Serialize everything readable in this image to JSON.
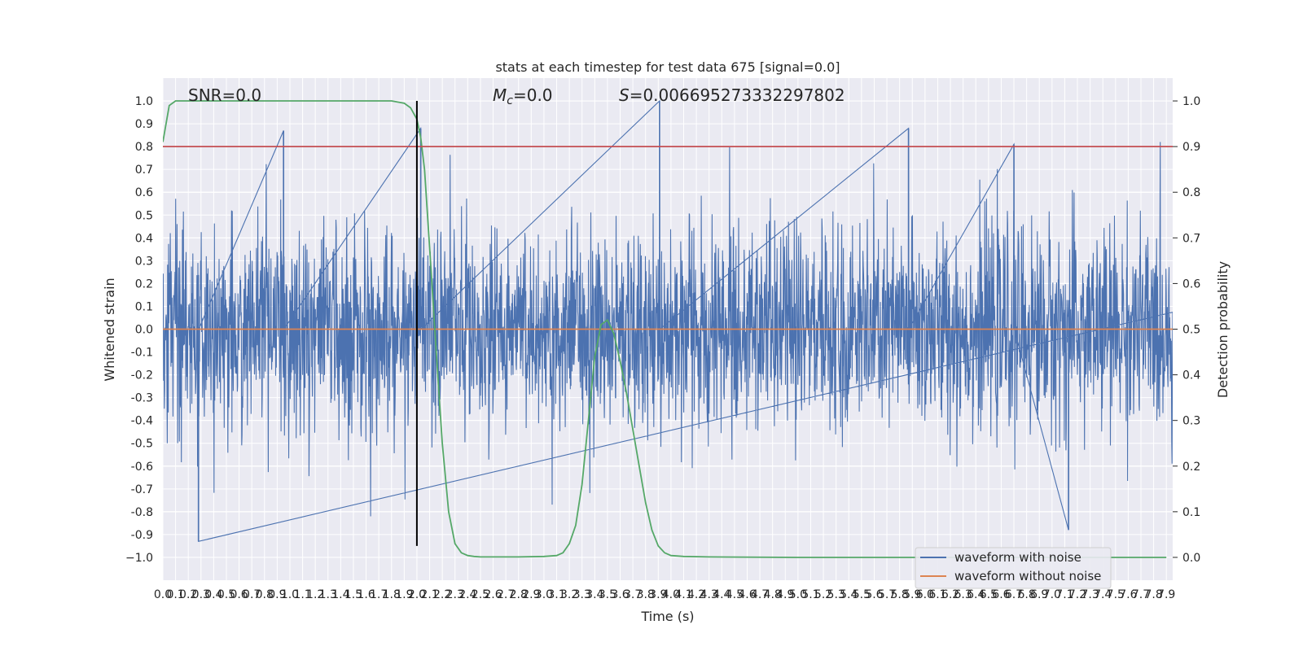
{
  "chart_data": {
    "type": "line",
    "title": "stats at each timestep for test data 675 [signal=0.0]",
    "xlabel": "Time (s)",
    "ylabel_left": "Whitened strain",
    "ylabel_right": "Detection probability",
    "xlim": [
      0.0,
      7.95
    ],
    "ylim_left": [
      -1.1,
      1.1
    ],
    "ylim_right": [
      -0.05,
      1.05
    ],
    "x_ticks": [
      "0.0",
      "0.1",
      "0.2",
      "0.3",
      "0.4",
      "0.5",
      "0.6",
      "0.7",
      "0.8",
      "0.9",
      "1.0",
      "1.1",
      "1.2",
      "1.3",
      "1.4",
      "1.5",
      "1.6",
      "1.7",
      "1.8",
      "1.9",
      "2.0",
      "2.1",
      "2.2",
      "2.3",
      "2.4",
      "2.5",
      "2.6",
      "2.7",
      "2.8",
      "2.9",
      "3.0",
      "3.1",
      "3.2",
      "3.3",
      "3.4",
      "3.5",
      "3.6",
      "3.7",
      "3.8",
      "3.9",
      "4.0",
      "4.1",
      "4.2",
      "4.3",
      "4.4",
      "4.5",
      "4.6",
      "4.7",
      "4.8",
      "4.9",
      "5.0",
      "5.1",
      "5.2",
      "5.3",
      "5.4",
      "5.5",
      "5.6",
      "5.7",
      "5.8",
      "5.9",
      "6.0",
      "6.1",
      "6.2",
      "6.3",
      "6.4",
      "6.5",
      "6.6",
      "6.7",
      "6.8",
      "6.9",
      "7.0",
      "7.1",
      "7.2",
      "7.3",
      "7.4",
      "7.5",
      "7.6",
      "7.7",
      "7.8",
      "7.9"
    ],
    "y_ticks_left": [
      "1.0",
      "0.9",
      "0.8",
      "0.7",
      "0.6",
      "0.5",
      "0.4",
      "0.3",
      "0.2",
      "0.1",
      "0.0",
      "-0.1",
      "-0.2",
      "-0.3",
      "-0.4",
      "-0.5",
      "-0.6",
      "-0.7",
      "-0.8",
      "-0.9",
      "−1.0"
    ],
    "y_ticks_right": [
      "1.0",
      "0.9",
      "0.8",
      "0.7",
      "0.6",
      "0.5",
      "0.4",
      "0.3",
      "0.2",
      "0.1",
      "0.0"
    ],
    "annotations": {
      "snr": "SNR=0.0",
      "mc_prefix": "M",
      "mc_sub": "c",
      "mc_suffix": "=0.0",
      "s_prefix": "S",
      "s_suffix": "=0.006695273332297802"
    },
    "legend": {
      "position": "lower right",
      "entries": [
        "waveform with noise",
        "waveform without noise"
      ]
    },
    "grid": true,
    "series": [
      {
        "name": "waveform with noise",
        "color": "#4c72b0",
        "axis": "left",
        "description": "dense noise waveform, amplitude approx -0.93 to 1.0",
        "peaks": [
          {
            "x": 0.28,
            "y": -0.93
          },
          {
            "x": 0.95,
            "y": 0.87
          },
          {
            "x": 2.03,
            "y": 0.88
          },
          {
            "x": 3.91,
            "y": 1.0
          },
          {
            "x": 5.87,
            "y": 0.88
          },
          {
            "x": 6.7,
            "y": 0.81
          },
          {
            "x": 7.13,
            "y": -0.88
          }
        ]
      },
      {
        "name": "waveform without noise",
        "color": "#dd8452",
        "axis": "left",
        "x": [
          0.0,
          7.95
        ],
        "y": [
          0.0,
          0.0
        ]
      },
      {
        "color": "#55a868",
        "axis": "right",
        "x": [
          0.0,
          0.05,
          0.1,
          0.2,
          0.5,
          1.0,
          1.5,
          1.8,
          1.9,
          1.95,
          2.0,
          2.03,
          2.06,
          2.1,
          2.15,
          2.2,
          2.25,
          2.3,
          2.35,
          2.4,
          2.45,
          2.5,
          2.6,
          2.8,
          3.0,
          3.1,
          3.15,
          3.2,
          3.25,
          3.3,
          3.35,
          3.4,
          3.45,
          3.5,
          3.55,
          3.6,
          3.65,
          3.7,
          3.75,
          3.8,
          3.85,
          3.9,
          3.95,
          4.0,
          4.1,
          4.3,
          5.0,
          6.0,
          7.0,
          7.9
        ],
        "y": [
          0.91,
          0.99,
          1.0,
          1.0,
          1.0,
          1.0,
          1.0,
          1.0,
          0.995,
          0.985,
          0.96,
          0.92,
          0.85,
          0.68,
          0.46,
          0.25,
          0.1,
          0.03,
          0.01,
          0.004,
          0.002,
          0.001,
          0.001,
          0.001,
          0.002,
          0.004,
          0.01,
          0.03,
          0.07,
          0.16,
          0.3,
          0.44,
          0.51,
          0.52,
          0.49,
          0.43,
          0.36,
          0.28,
          0.2,
          0.12,
          0.06,
          0.025,
          0.01,
          0.004,
          0.002,
          0.001,
          0.0,
          0.0,
          0.0,
          0.0
        ]
      },
      {
        "color": "#c44e52",
        "axis": "right",
        "x": [
          0.0,
          7.95
        ],
        "y": [
          0.9,
          0.9
        ]
      },
      {
        "color": "#000000",
        "axis": "left",
        "x": [
          2.0,
          2.0
        ],
        "y": [
          -0.95,
          1.0
        ]
      }
    ]
  }
}
